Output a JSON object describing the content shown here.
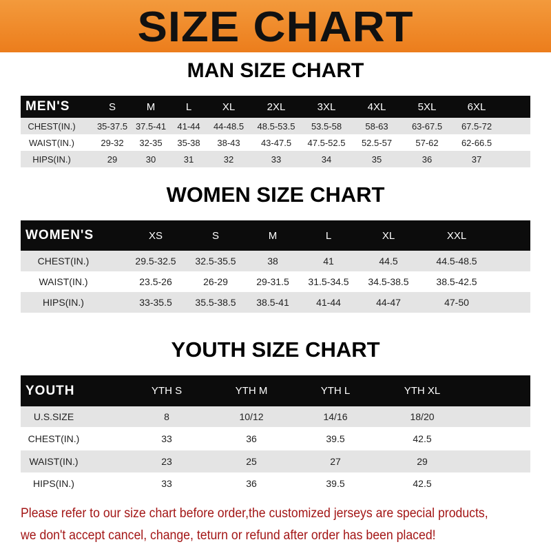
{
  "banner": {
    "title": "SIZE CHART",
    "color": "#ee8526"
  },
  "notice_color": "#a31616",
  "tables": [
    {
      "title": "MAN SIZE CHART",
      "header": [
        "MEN'S",
        "S",
        "M",
        "L",
        "XL",
        "2XL",
        "3XL",
        "4XL",
        "5XL",
        "6XL"
      ],
      "rows": [
        [
          "CHEST(IN.)",
          "35-37.5",
          "37.5-41",
          "41-44",
          "44-48.5",
          "48.5-53.5",
          "53.5-58",
          "58-63",
          "63-67.5",
          "67.5-72"
        ],
        [
          "WAIST(IN.)",
          "29-32",
          "32-35",
          "35-38",
          "38-43",
          "43-47.5",
          "47.5-52.5",
          "52.5-57",
          "57-62",
          "62-66.5"
        ],
        [
          "HIPS(IN.)",
          "29",
          "30",
          "31",
          "32",
          "33",
          "34",
          "35",
          "36",
          "37"
        ]
      ]
    },
    {
      "title": "WOMEN SIZE CHART",
      "header": [
        "WOMEN'S",
        "XS",
        "S",
        "M",
        "L",
        "XL",
        "XXL"
      ],
      "rows": [
        [
          "CHEST(IN.)",
          "29.5-32.5",
          "32.5-35.5",
          "38",
          "41",
          "44.5",
          "44.5-48.5"
        ],
        [
          "WAIST(IN.)",
          "23.5-26",
          "26-29",
          "29-31.5",
          "31.5-34.5",
          "34.5-38.5",
          "38.5-42.5"
        ],
        [
          "HIPS(IN.)",
          "33-35.5",
          "35.5-38.5",
          "38.5-41",
          "41-44",
          "44-47",
          "47-50"
        ]
      ]
    },
    {
      "title": "YOUTH SIZE CHART",
      "header": [
        "YOUTH",
        "YTH S",
        "YTH M",
        "YTH L",
        "YTH XL"
      ],
      "rows": [
        [
          "U.S.SIZE",
          "8",
          "10/12",
          "14/16",
          "18/20"
        ],
        [
          "CHEST(IN.)",
          "33",
          "36",
          "39.5",
          "42.5"
        ],
        [
          "WAIST(IN.)",
          "23",
          "25",
          "27",
          "29"
        ],
        [
          "HIPS(IN.)",
          "33",
          "36",
          "39.5",
          "42.5"
        ]
      ]
    }
  ],
  "notice": {
    "line1": "Please refer to our size chart before order,the customized jerseys are special products,",
    "line2": "we don't accept cancel, change, teturn or refund after order has been placed!"
  }
}
